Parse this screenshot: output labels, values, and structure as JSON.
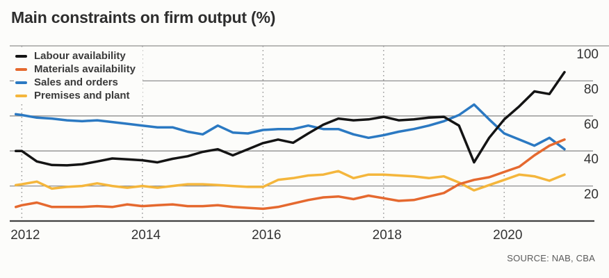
{
  "chart_data": {
    "type": "line",
    "title": "Main constraints on firm output (%)",
    "source": "SOURCE: NAB, CBA",
    "legend_position": "top-left",
    "grid": true,
    "x": [
      2011.9,
      2012.0,
      2012.25,
      2012.5,
      2012.75,
      2013.0,
      2013.25,
      2013.5,
      2013.75,
      2014.0,
      2014.25,
      2014.5,
      2014.75,
      2015.0,
      2015.25,
      2015.5,
      2015.75,
      2016.0,
      2016.25,
      2016.5,
      2016.75,
      2017.0,
      2017.25,
      2017.5,
      2017.75,
      2018.0,
      2018.25,
      2018.5,
      2018.75,
      2019.0,
      2019.25,
      2019.5,
      2019.75,
      2020.0,
      2020.25,
      2020.5,
      2020.75,
      2021.0
    ],
    "series": [
      {
        "name": "Labour availability",
        "color": "#141414",
        "values": [
          40,
          40,
          34,
          32,
          31.8,
          32.4,
          34,
          35.7,
          35.2,
          34.7,
          33.5,
          35.5,
          37,
          39.5,
          41,
          37.5,
          41,
          44.5,
          46.5,
          44.7,
          50,
          55,
          58.5,
          57.5,
          58,
          59.5,
          57.5,
          58,
          59,
          59.5,
          54.5,
          33.5,
          47.5,
          58,
          65.5,
          74,
          72.5,
          85
        ]
      },
      {
        "name": "Materials availability",
        "color": "#e5692f",
        "values": [
          8,
          9,
          10.5,
          8,
          8,
          8,
          8.5,
          8,
          9.5,
          8.5,
          9,
          9.5,
          8.5,
          8.5,
          9,
          8,
          7.5,
          7,
          8,
          10,
          12,
          13.5,
          14,
          12.5,
          14.5,
          13,
          11.5,
          12,
          14,
          16,
          21,
          23.5,
          25,
          28,
          31,
          37.5,
          43,
          46.5
        ]
      },
      {
        "name": "Sales and orders",
        "color": "#2b79c2",
        "values": [
          61,
          60.5,
          59,
          58.5,
          57.5,
          57,
          57.5,
          56.5,
          55.5,
          54.5,
          53.5,
          53.5,
          51,
          49.5,
          54.5,
          50.5,
          50,
          52,
          52.5,
          52.5,
          54.5,
          52.5,
          52.5,
          49.5,
          47.5,
          49,
          51,
          52.5,
          54.5,
          57,
          60.5,
          66.5,
          58,
          50,
          46.5,
          43,
          47.5,
          41
        ]
      },
      {
        "name": "Premises and plant",
        "color": "#f4b63c",
        "values": [
          20.5,
          21,
          22.5,
          18.5,
          19.5,
          20,
          21.5,
          20,
          19,
          20,
          19,
          20,
          21,
          21,
          20.5,
          20,
          19.5,
          19.5,
          23.5,
          24.5,
          26,
          26.5,
          28.5,
          24.5,
          26.5,
          26.5,
          26,
          25.5,
          24.5,
          25.5,
          22,
          17.5,
          20.5,
          23.5,
          26.5,
          25.5,
          23,
          26.5
        ]
      }
    ],
    "x_ticks": [
      2012,
      2014,
      2016,
      2018,
      2020
    ],
    "y_ticks": [
      100,
      80,
      60,
      40,
      20
    ],
    "xlim": [
      2011.8,
      2021.53
    ],
    "ylim": [
      0,
      100
    ],
    "style": {
      "grid_color": "#8f8f8f",
      "axis_color": "#414141",
      "dotted_color": "#9b9b9b",
      "tick_label_color": "#333333",
      "background": "#fcfcfa"
    }
  }
}
